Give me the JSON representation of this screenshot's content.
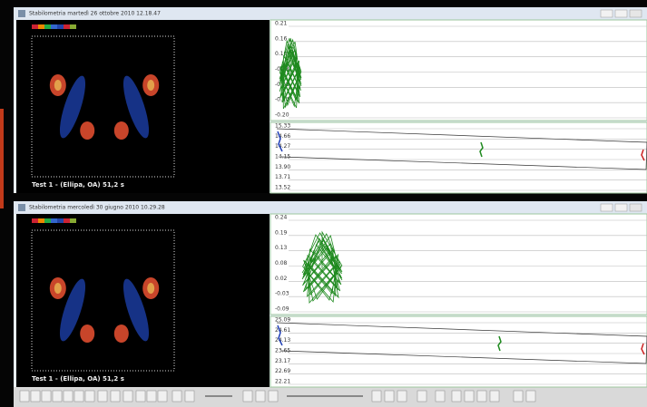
{
  "windows": [
    {
      "title": "Stabilometria martedì 26 ottobre 2010 12.18.47",
      "footer": "Test 1 - (Ellipa, OA) 51,2 s",
      "panels": [
        {
          "ticks": [
            "0.21",
            "0.16",
            "0.10",
            "-0.03",
            "-0.08",
            "-0.14",
            "-0.20"
          ]
        },
        {
          "ticks": [
            "15.33",
            "14.66",
            "14.27",
            "14.15",
            "13.90",
            "13.71",
            "13.52"
          ]
        }
      ]
    },
    {
      "title": "Stabilometria mercoledì 30 giugno 2010 10.29.28",
      "footer": "Test 1 - (Ellipa, OA) 51,2 s",
      "panels": [
        {
          "ticks": [
            "0.24",
            "0.19",
            "0.13",
            "0.08",
            "0.02",
            "-0.03",
            "-0.09"
          ]
        },
        {
          "ticks": [
            "25.09",
            "24.61",
            "24.13",
            "23.65",
            "23.17",
            "22.69",
            "22.21"
          ]
        }
      ]
    }
  ]
}
